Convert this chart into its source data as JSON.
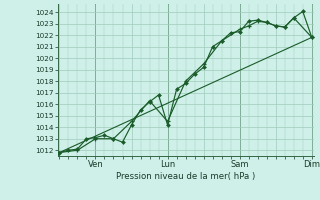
{
  "bg_color": "#cef0e8",
  "grid_color": "#a0ccbb",
  "line_color": "#1a5c2a",
  "marker_color": "#1a5c2a",
  "xlabel_text": "Pression niveau de la mer( hPa )",
  "ylim": [
    1011.5,
    1024.7
  ],
  "yticks": [
    1012,
    1013,
    1014,
    1015,
    1016,
    1017,
    1018,
    1019,
    1020,
    1021,
    1022,
    1023,
    1024
  ],
  "xlim": [
    -0.05,
    7.05
  ],
  "vline_positions": [
    1,
    3,
    5,
    7
  ],
  "xtick_labels": [
    "",
    "Ven",
    "",
    "Lun",
    "",
    "Sam",
    "",
    "Dim"
  ],
  "xtick_positions": [
    0,
    1,
    2,
    3,
    4,
    5,
    6,
    7
  ],
  "series_line": {
    "x": [
      0.0,
      7.0
    ],
    "y": [
      1011.8,
      1021.8
    ]
  },
  "series_cross": {
    "x": [
      0.0,
      0.5,
      1.0,
      1.5,
      2.0,
      2.5,
      3.0,
      3.5,
      4.0,
      4.5,
      5.0,
      5.25,
      5.5,
      5.75,
      6.0,
      6.25,
      6.5,
      7.0
    ],
    "y": [
      1011.8,
      1012.0,
      1013.0,
      1013.0,
      1014.5,
      1016.3,
      1014.5,
      1018.0,
      1019.5,
      1021.5,
      1022.5,
      1022.8,
      1023.2,
      1023.1,
      1022.8,
      1022.7,
      1023.5,
      1021.8
    ]
  },
  "series_diamond": {
    "x": [
      0.0,
      0.25,
      0.5,
      0.75,
      1.0,
      1.25,
      1.5,
      1.75,
      2.0,
      2.25,
      2.5,
      2.75,
      3.0,
      3.25,
      3.5,
      3.75,
      4.0,
      4.25,
      4.5,
      4.75,
      5.0,
      5.25,
      5.5,
      5.75,
      6.0,
      6.25,
      6.5,
      6.75,
      7.0
    ],
    "y": [
      1011.8,
      1012.0,
      1012.1,
      1013.0,
      1013.1,
      1013.3,
      1013.0,
      1012.7,
      1014.2,
      1015.5,
      1016.2,
      1016.8,
      1014.2,
      1017.3,
      1017.8,
      1018.6,
      1019.2,
      1021.0,
      1021.5,
      1022.2,
      1022.3,
      1023.2,
      1023.3,
      1023.1,
      1022.8,
      1022.7,
      1023.5,
      1024.05,
      1021.8
    ]
  }
}
